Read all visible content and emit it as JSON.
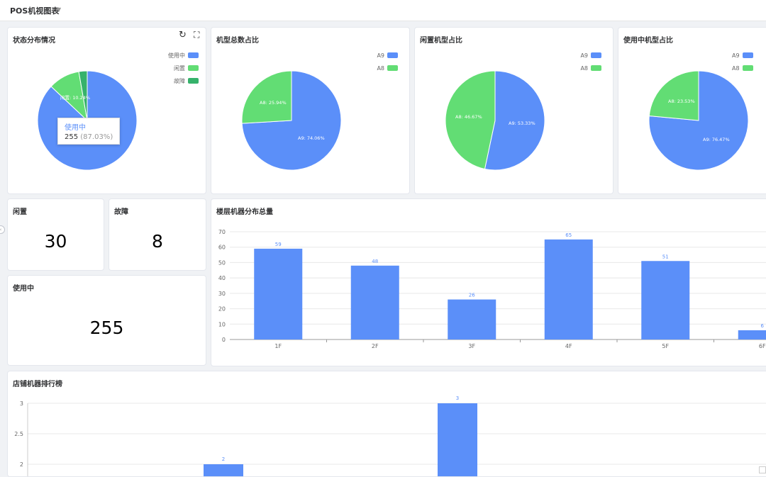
{
  "header": {
    "title": "POS机视图表",
    "caret": "▼"
  },
  "colors": {
    "primary": "#5b8ff9",
    "green": "#62dd74",
    "dark_green": "#36b26b"
  },
  "icons": {
    "refresh": "refresh-icon",
    "fullscreen": "fullscreen-icon",
    "collapse": "chevron-left-icon"
  },
  "status_chart": {
    "title": "状态分布情况",
    "legend": [
      "使用中",
      "闲置",
      "故障"
    ],
    "slice_label": "闲置: 10.24%",
    "tooltip": {
      "name": "使用中",
      "value": "255",
      "pct": "(87.03%)"
    }
  },
  "model_total": {
    "title": "机型总数占比",
    "legend": [
      "A9",
      "A8"
    ],
    "labels": [
      "A9: 74.06%",
      "A8: 25.94%"
    ]
  },
  "idle_model": {
    "title": "闲置机型占比",
    "legend": [
      "A9",
      "A8"
    ],
    "labels": [
      "A9: 53.33%",
      "A8: 46.67%"
    ]
  },
  "inuse_model": {
    "title": "使用中机型占比",
    "legend": [
      "A9",
      "A8"
    ],
    "labels": [
      "A9: 76.47%",
      "A8: 23.53%"
    ]
  },
  "stats": {
    "idle": {
      "label": "闲置",
      "value": "30"
    },
    "fault": {
      "label": "故障",
      "value": "8"
    },
    "inuse": {
      "label": "使用中",
      "value": "255"
    }
  },
  "floor_chart": {
    "title": "楼层机器分布总量"
  },
  "store_chart": {
    "title": "店铺机器排行榜"
  },
  "chart_data": [
    {
      "type": "pie",
      "title": "状态分布情况",
      "categories": [
        "使用中",
        "闲置",
        "故障"
      ],
      "values": [
        255,
        30,
        8
      ],
      "percentages": [
        87.03,
        10.24,
        2.73
      ],
      "colors": [
        "#5b8ff9",
        "#62dd74",
        "#36b26b"
      ],
      "legend_position": "top-right"
    },
    {
      "type": "pie",
      "title": "机型总数占比",
      "categories": [
        "A9",
        "A8"
      ],
      "percentages": [
        74.06,
        25.94
      ],
      "colors": [
        "#5b8ff9",
        "#62dd74"
      ],
      "legend_position": "top-right"
    },
    {
      "type": "pie",
      "title": "闲置机型占比",
      "categories": [
        "A9",
        "A8"
      ],
      "percentages": [
        53.33,
        46.67
      ],
      "colors": [
        "#5b8ff9",
        "#62dd74"
      ],
      "legend_position": "top-right"
    },
    {
      "type": "pie",
      "title": "使用中机型占比",
      "categories": [
        "A9",
        "A8"
      ],
      "percentages": [
        76.47,
        23.53
      ],
      "colors": [
        "#5b8ff9",
        "#62dd74"
      ],
      "legend_position": "top-right"
    },
    {
      "type": "bar",
      "title": "楼层机器分布总量",
      "categories": [
        "1F",
        "2F",
        "3F",
        "4F",
        "5F",
        "6F"
      ],
      "values": [
        59,
        48,
        26,
        65,
        51,
        6
      ],
      "ylim": [
        0,
        70
      ],
      "yticks": [
        0,
        10,
        20,
        30,
        40,
        50,
        60,
        70
      ],
      "grid": true
    },
    {
      "type": "bar",
      "title": "店铺机器排行榜",
      "values": [
        2,
        3
      ],
      "yticks": [
        2,
        2.5,
        3
      ],
      "grid": true
    }
  ]
}
